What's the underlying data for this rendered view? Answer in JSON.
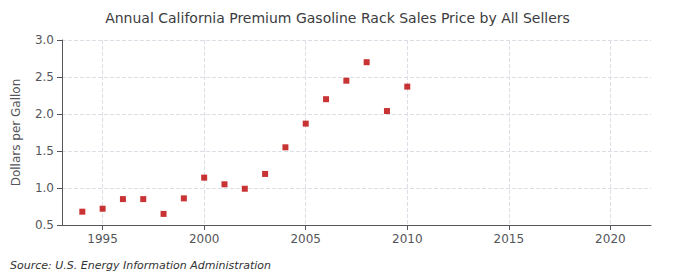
{
  "chart_data": {
    "type": "scatter",
    "title": "Annual California Premium Gasoline Rack Sales Price by All Sellers",
    "ylabel": "Dollars per Gallon",
    "annotations": [
      "Source: U.S. Energy Information Administration"
    ],
    "x": [
      1994,
      1995,
      1996,
      1997,
      1998,
      1999,
      2000,
      2001,
      2002,
      2003,
      2004,
      2005,
      2006,
      2007,
      2008,
      2009,
      2010
    ],
    "values": [
      0.68,
      0.72,
      0.85,
      0.85,
      0.65,
      0.86,
      1.14,
      1.05,
      0.99,
      1.19,
      1.55,
      1.87,
      2.2,
      2.45,
      2.7,
      2.04,
      2.37
    ],
    "color": "#bb0000",
    "marker": "square",
    "xlim": [
      1993,
      2022
    ],
    "xticks": [
      1995,
      2000,
      2005,
      2010,
      2015,
      2020
    ],
    "ylim": [
      0.5,
      3.0
    ],
    "yticks": [
      0.5,
      {
        "value": 1.0,
        "label": "1.0"
      },
      1.5,
      {
        "value": 2.0,
        "label": "2.0"
      },
      2.5,
      {
        "value": 3.0,
        "label": "3.0"
      }
    ],
    "grid": true
  }
}
